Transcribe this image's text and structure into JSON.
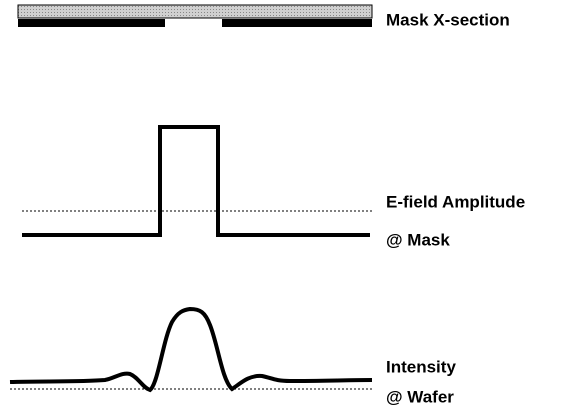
{
  "labels": {
    "mask": "Mask X-section",
    "efield": [
      "E-field Amplitude",
      "@ Mask"
    ],
    "intensity": [
      "Intensity",
      "@ Wafer"
    ]
  }
}
